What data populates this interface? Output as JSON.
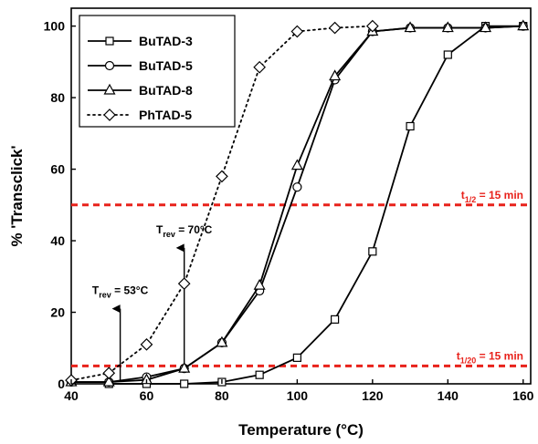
{
  "chart_data": {
    "type": "line",
    "xlabel": "Temperature (°C)",
    "ylabel": "% 'Transclick'",
    "xlim": [
      40,
      162
    ],
    "ylim": [
      0,
      105
    ],
    "x_ticks": [
      40,
      60,
      80,
      100,
      120,
      140,
      160
    ],
    "y_ticks": [
      0,
      20,
      40,
      60,
      80,
      100
    ],
    "grid": false,
    "legend_position": "top-left",
    "series": [
      {
        "name": "BuTAD-3",
        "marker": "square",
        "line_style": "solid",
        "color": "#000000",
        "x": [
          50,
          60,
          70,
          80,
          90,
          100,
          110,
          120,
          130,
          140,
          150,
          160
        ],
        "y": [
          0,
          0,
          0,
          0.5,
          2.5,
          7.3,
          18,
          37,
          72,
          92,
          100,
          100
        ]
      },
      {
        "name": "BuTAD-5",
        "marker": "circle",
        "line_style": "solid",
        "color": "#000000",
        "x": [
          40,
          50,
          60,
          70,
          80,
          90,
          100,
          110,
          120,
          130,
          140,
          150,
          160
        ],
        "y": [
          0.5,
          0.5,
          1.9,
          4.3,
          11.5,
          26,
          55,
          85,
          98.5,
          99.5,
          99.5,
          99.5,
          100
        ]
      },
      {
        "name": "BuTAD-8",
        "marker": "triangle",
        "line_style": "solid",
        "color": "#000000",
        "x": [
          40,
          50,
          60,
          70,
          80,
          90,
          100,
          110,
          120,
          130,
          140,
          150,
          160
        ],
        "y": [
          0.5,
          0.5,
          1.1,
          4.3,
          11.5,
          27.5,
          61,
          86,
          98.5,
          99.5,
          99.5,
          99.5,
          100
        ]
      },
      {
        "name": "PhTAD-5",
        "marker": "diamond",
        "line_style": "dotted",
        "color": "#000000",
        "x": [
          40,
          50,
          60,
          70,
          80,
          90,
          100,
          110,
          120
        ],
        "y": [
          1,
          3,
          11,
          28,
          58,
          88.5,
          98.5,
          99.5,
          100
        ]
      }
    ],
    "reference_lines": [
      {
        "y": 50,
        "label_main": "t",
        "label_sub": "1/2",
        "label_rest": " = 15 min",
        "color": "#e8221b"
      },
      {
        "y": 5,
        "label_main": "t",
        "label_sub": "1/20",
        "label_rest": " = 15 min",
        "color": "#e8221b"
      }
    ],
    "annotations": [
      {
        "label_main": "T",
        "label_sub": "rev",
        "label_rest": " = 53°C",
        "arrow_x": 53,
        "arrow_from": 1,
        "arrow_to": 21
      },
      {
        "label_main": "T",
        "label_sub": "rev",
        "label_rest": " = 70°C",
        "arrow_x": 70,
        "arrow_from": 4,
        "arrow_to": 38
      }
    ]
  }
}
